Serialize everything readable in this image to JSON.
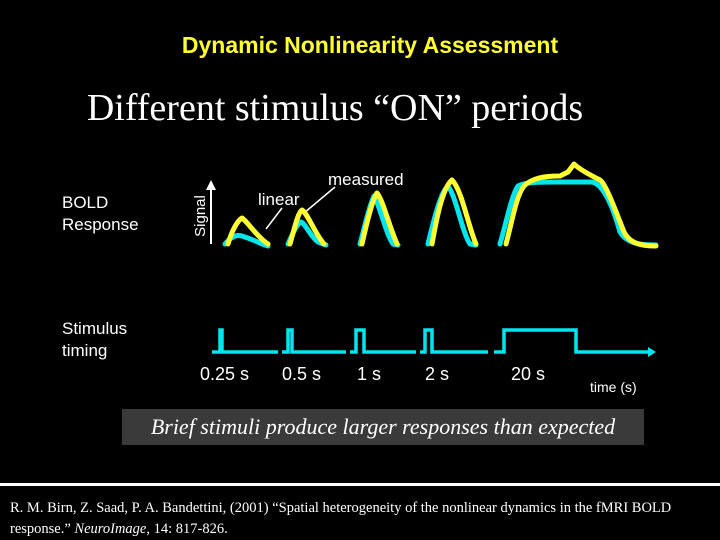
{
  "header": {
    "title": "Dynamic Nonlinearity Assessment",
    "subtitle": "Different stimulus “ON” periods"
  },
  "labels": {
    "bold_line1": "BOLD",
    "bold_line2": "Response",
    "stimulus_line1": "Stimulus",
    "stimulus_line2": "timing",
    "signal_axis": "Signal",
    "linear": "linear",
    "measured": "measured",
    "time_axis": "time (s)"
  },
  "durations": [
    "0.25 s",
    "0.5 s",
    "1 s",
    "2 s",
    "20 s"
  ],
  "caption": "Brief stimuli produce larger responses than expected",
  "reference": {
    "text": "R. M. Birn, Z. Saad, P. A. Bandettini, (2001) “Spatial heterogeneity of the nonlinear dynamics in the fMRI BOLD response.” ",
    "journal": "NeuroImage",
    "tail": ", 14: 817-826."
  },
  "colors": {
    "title": "#ffff33",
    "measured": "#ffff33",
    "linear": "#00e5ee",
    "background": "#000000"
  }
}
